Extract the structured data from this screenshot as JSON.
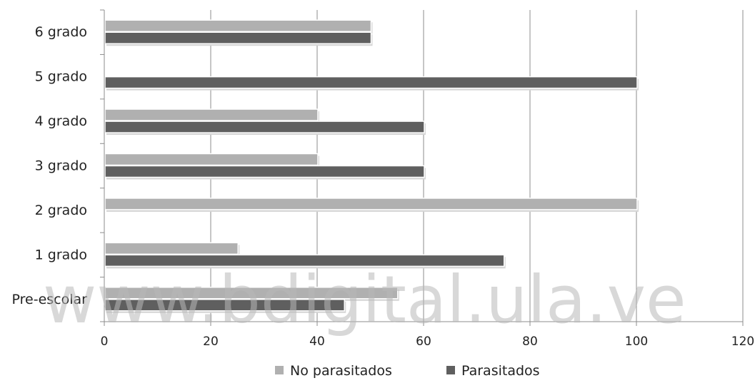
{
  "chart_data": {
    "type": "bar",
    "orientation": "horizontal",
    "categories": [
      "Pre-escolar",
      "1 grado",
      "2 grado",
      "3 grado",
      "4 grado",
      "5 grado",
      "6 grado"
    ],
    "series": [
      {
        "name": "No parasitados",
        "color": "#b0b0b0",
        "values": [
          55,
          25,
          100,
          40,
          40,
          0,
          50
        ]
      },
      {
        "name": "Parasitados",
        "color": "#5f5f5f",
        "values": [
          45,
          75,
          0,
          60,
          60,
          100,
          50
        ]
      }
    ],
    "x_ticks": [
      "0",
      "20",
      "40",
      "60",
      "80",
      "100",
      "120"
    ],
    "xlim": [
      0,
      120
    ],
    "grid": true,
    "legend_position": "bottom",
    "watermark": "www.bdigital.ula.ve"
  }
}
